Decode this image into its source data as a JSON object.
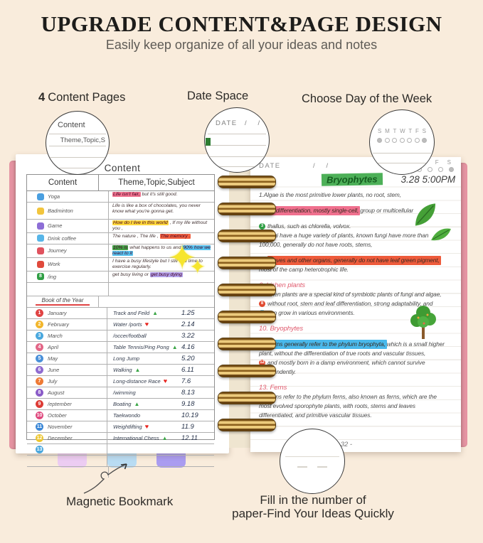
{
  "header": {
    "title": "UPGRADE CONTENT&PAGE DESIGN",
    "subtitle": "Easily keep organize of all your ideas and notes"
  },
  "features": {
    "count": "4",
    "content_pages": "Content Pages",
    "date_space": "Date Space",
    "choose_day": "Choose Day of the Week"
  },
  "callouts": {
    "content": {
      "title": "Content",
      "preview": "Theme,Topic,S"
    },
    "date": {
      "label": "DATE",
      "slashes": "/      /"
    },
    "week": {
      "days": [
        "S",
        "M",
        "T",
        "W",
        "T",
        "F",
        "S"
      ],
      "filled_indexes": [
        0,
        6
      ]
    }
  },
  "left_page": {
    "title": "Content",
    "table": {
      "col1_header": "Content",
      "col2_header": "Theme,Topic,Subject",
      "activity_rows": [
        {
          "label": "Yoga",
          "icon": "yoga-icon",
          "icon_color": "#4a9fe0",
          "segments": [
            {
              "text": "Life isn't fair,",
              "hl": "#f0738f"
            },
            {
              "text": " but it's still good.",
              "hl": ""
            }
          ]
        },
        {
          "label": "Badminton",
          "icon": "badminton-icon",
          "icon_color": "#f2c53d",
          "tall": true,
          "segments": [
            {
              "text": "Life is like a box of chocolates, you never know what you're gonna get.",
              "hl": ""
            }
          ]
        },
        {
          "label": "Game",
          "icon": "game-controller-icon",
          "icon_color": "#8d6ed6",
          "segments": [
            {
              "text": "How do I live in this world",
              "hl": "#ffd83c"
            },
            {
              "text": " , If my life without you ,",
              "hl": ""
            }
          ]
        },
        {
          "label": "Drink coffee",
          "icon": "coffee-cup-icon",
          "icon_color": "#57b5e8",
          "segments": [
            {
              "text": "The nature , The life , ",
              "hl": ""
            },
            {
              "text": "The memory .",
              "hl": "#f26140"
            }
          ]
        },
        {
          "label": "Journey",
          "icon": "car-icon",
          "icon_color": "#e0525e",
          "segments": [
            {
              "text": "10% is",
              "hl": "#43a047"
            },
            {
              "text": " what happens to us and ",
              "hl": ""
            },
            {
              "text": "90% how we react to it",
              "hl": "#58c4f0"
            }
          ]
        },
        {
          "label": "Work",
          "icon": "briefcase-icon",
          "icon_color": "#e04a3c",
          "segments": [
            {
              "text": "I have a busy lifestyle but I still find time to exercise regularly.",
              "hl": ""
            }
          ]
        },
        {
          "label": "/ing",
          "icon": "number-8-icon",
          "icon_color": "#2f9e44",
          "segments": [
            {
              "text": "get busy living or ",
              "hl": ""
            },
            {
              "text": "get busy dying",
              "hl": "#b2a1ea"
            }
          ]
        }
      ],
      "divider_label": "Book of the Year",
      "month_rows": [
        {
          "num": "1",
          "color": "#e04343",
          "month": "January",
          "activity": "Track and Feild",
          "symbol": "triangle",
          "value": "1.25"
        },
        {
          "num": "2",
          "color": "#f2b62c",
          "month": "February",
          "activity": "Water /ports",
          "symbol": "heart",
          "value": "2.14"
        },
        {
          "num": "3",
          "color": "#4aa8de",
          "month": "March",
          "activity": "/occer/football",
          "symbol": "",
          "value": "3.22"
        },
        {
          "num": "4",
          "color": "#e26687",
          "month": "April",
          "activity": "Table Tennis/Ping Pong",
          "symbol": "triangle",
          "value": "4.16"
        },
        {
          "num": "5",
          "color": "#4a90d9",
          "month": "May",
          "activity": "Long Jump",
          "symbol": "",
          "value": "5.20"
        },
        {
          "num": "6",
          "color": "#8f6bd0",
          "month": "June",
          "activity": "Walking",
          "symbol": "triangle",
          "value": "6.11"
        },
        {
          "num": "7",
          "color": "#ee7a35",
          "month": "July",
          "activity": "Long-distance Race",
          "symbol": "heart",
          "value": "7.6"
        },
        {
          "num": "8",
          "color": "#8a5bc8",
          "month": "August",
          "activity": "/wimming",
          "symbol": "",
          "value": "8.13"
        },
        {
          "num": "9",
          "color": "#dd3b35",
          "month": "/eptember",
          "activity": "Boating",
          "symbol": "triangle",
          "value": "9.18"
        },
        {
          "num": "10",
          "color": "#df4a7f",
          "month": "October",
          "activity": "Taekwondo",
          "symbol": "",
          "value": "10.19"
        },
        {
          "num": "11",
          "color": "#3b87d6",
          "month": "November",
          "activity": "Weightlifting",
          "symbol": "heart",
          "value": "11.9"
        },
        {
          "num": "12",
          "color": "#ecc630",
          "month": "December",
          "activity": "International Chess",
          "symbol": "triangle",
          "value": "12.11"
        },
        {
          "num": "13",
          "color": "#4aa8de",
          "month": "",
          "activity": "",
          "symbol": "",
          "value": ""
        }
      ]
    }
  },
  "right_page": {
    "date_label": "DATE",
    "date_slashes": "/      /",
    "week": {
      "letters": [
        "T",
        "F",
        "S"
      ],
      "circle_count": 4,
      "filled_last": true
    },
    "note_title": "Bryophytes",
    "note_time": "3.28 5:00PM",
    "lines": [
      {
        "segments": [
          {
            "text": "1.Algae is the most primitive lower plants, no root, stem,",
            "hl": ""
          }
        ]
      },
      {
        "gap": true,
        "segments": [
          {
            "text": "2. ",
            "hl": ""
          },
          {
            "text": "leaf differentiation, mostly single-cell,",
            "hl": "#f0708e"
          },
          {
            "text": " group or multicellular",
            "hl": ""
          }
        ]
      },
      {
        "gap": true,
        "marker": {
          "text": "3",
          "color": "#2f9e44"
        },
        "segments": [
          {
            "text": "thallus, such as chlorella, volvox.",
            "hl": ""
          }
        ]
      },
      {
        "segments": [
          {
            "text": "4.Fungi have a huge variety of plants, known fungi have more than",
            "hl": ""
          }
        ]
      },
      {
        "segments": [
          {
            "text": "100,000, generally do not have roots, stems,",
            "hl": ""
          }
        ]
      },
      {
        "gap": true,
        "marker": {
          "text": "5",
          "color": "#f2c53d"
        },
        "segments": [
          {
            "text": "leaves and other organs, generally do not have leaf green pigment,",
            "hl": "#ee5b3b"
          }
        ]
      },
      {
        "segments": [
          {
            "text": "most of the camp heterotrophic life.",
            "hl": ""
          }
        ]
      },
      {
        "gap": true,
        "heading": true,
        "segments": [
          {
            "text": "6. Lichen plants",
            "hl": ""
          }
        ]
      },
      {
        "segments": [
          {
            "text": "7.Lichen plants are a special kind of symbiotic plants of fungi and algae,",
            "hl": ""
          }
        ]
      },
      {
        "marker": {
          "text": "8",
          "color": "#e0492f"
        },
        "segments": [
          {
            "text": "without root, stem and leaf differentiation, strong adaptability, and",
            "hl": ""
          }
        ]
      },
      {
        "marker": {
          "text": "9",
          "color": "#3ba7d9"
        },
        "segments": [
          {
            "text": "can grow in various environments.",
            "hl": ""
          }
        ]
      },
      {
        "gap": true,
        "heading": true,
        "segments": [
          {
            "text": "10. Bryophytes",
            "hl": ""
          }
        ]
      },
      {
        "gap": true,
        "segments": [
          {
            "text": "11.",
            "hl": ""
          },
          {
            "text": "Ferns generally refer to the phylum bryophyta,",
            "hl": "#4ab9ec"
          },
          {
            "text": " which is a small higher",
            "hl": ""
          }
        ]
      },
      {
        "segments": [
          {
            "text": "plant, without the differentiation of true roots and vascular tissues,",
            "hl": ""
          }
        ]
      },
      {
        "marker": {
          "text": "12",
          "color": "#e0492f"
        },
        "segments": [
          {
            "text": "and mostly born in a damp environment, which cannot survive",
            "hl": ""
          }
        ]
      },
      {
        "segments": [
          {
            "text": "independently.",
            "hl": ""
          }
        ]
      },
      {
        "gap": true,
        "heading": true,
        "segments": [
          {
            "text": "13. Ferns",
            "hl": ""
          }
        ]
      },
      {
        "segments": [
          {
            "text": "14.Ferns refer to the phylum ferns, also known as ferns, which are the",
            "hl": ""
          }
        ]
      },
      {
        "segments": [
          {
            "text": "most evolved sporophyte plants, with roots, stems and leaves",
            "hl": ""
          }
        ]
      },
      {
        "segments": [
          {
            "text": "differentiated, and primitive vascular tissues.",
            "hl": ""
          }
        ]
      }
    ],
    "page_number": "- 32 -"
  },
  "footer": {
    "magnetic_bookmark": "Magnetic Bookmark",
    "fill_line1": "Fill in the number of",
    "fill_line2": "paper-Find Your Ideas Quickly"
  },
  "colors": {
    "background": "#f9ecdc",
    "cover_pink": "#e795a4",
    "coil_gold": "#c99c4a",
    "note_title_green": "#4db058",
    "heading_red": "#e05a6d"
  }
}
